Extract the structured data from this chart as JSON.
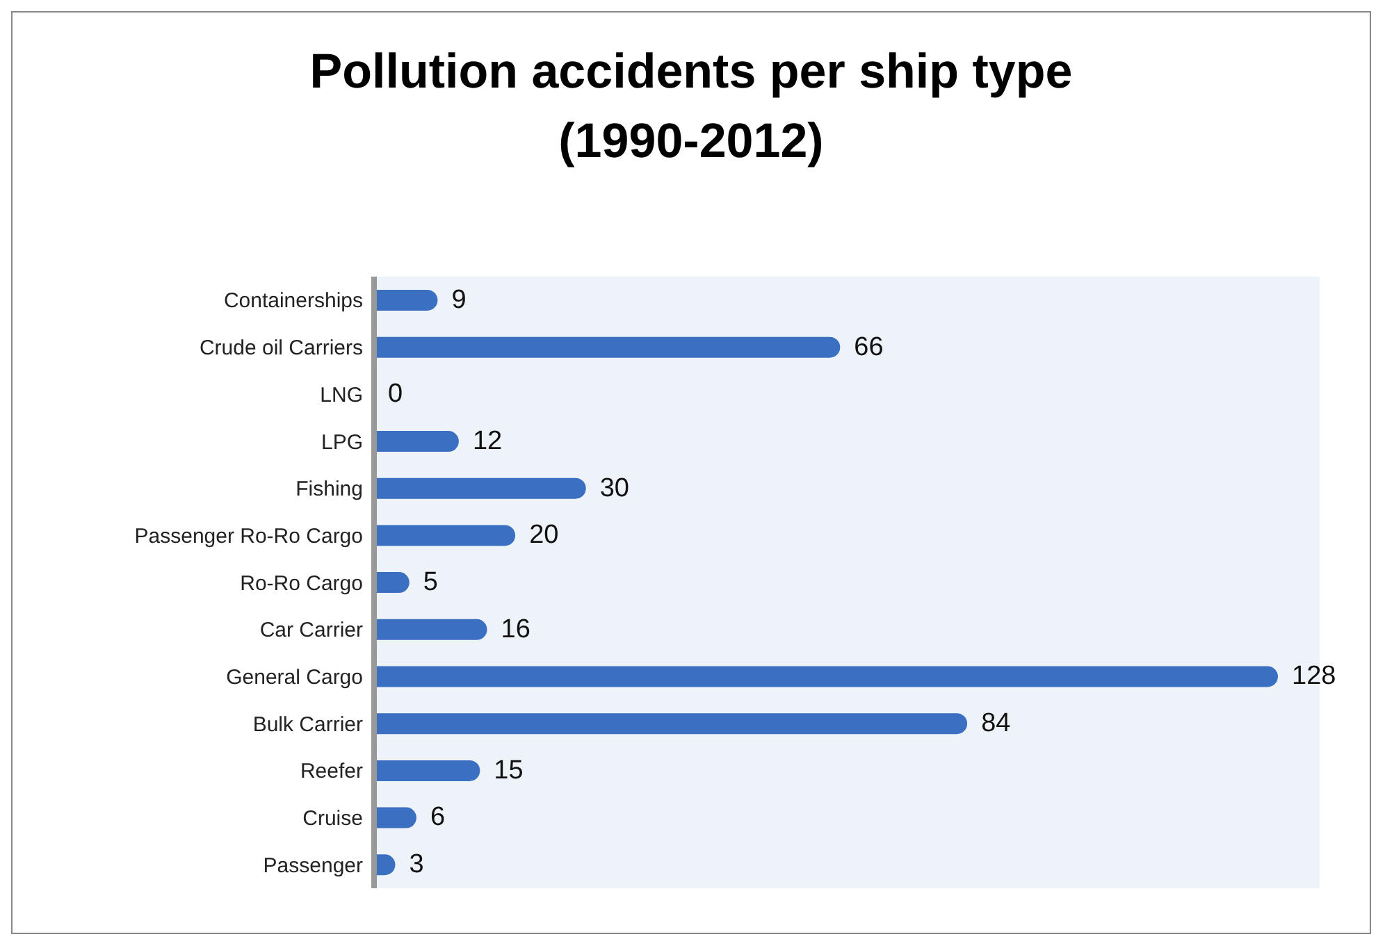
{
  "chart_data": {
    "type": "bar",
    "orientation": "horizontal",
    "title": "Pollution accidents per ship type (1990-2012)",
    "categories": [
      "Containerships",
      "Crude oil Carriers",
      "LNG",
      "LPG",
      "Fishing",
      "Passenger Ro-Ro Cargo",
      "Ro-Ro Cargo",
      "Car Carrier",
      "General Cargo",
      "Bulk Carrier",
      "Reefer",
      "Cruise",
      "Passenger"
    ],
    "values": [
      9,
      66,
      0,
      12,
      30,
      20,
      5,
      16,
      128,
      84,
      15,
      6,
      3
    ],
    "color": "#3b6fc2",
    "data_labels": true,
    "legend": false
  }
}
